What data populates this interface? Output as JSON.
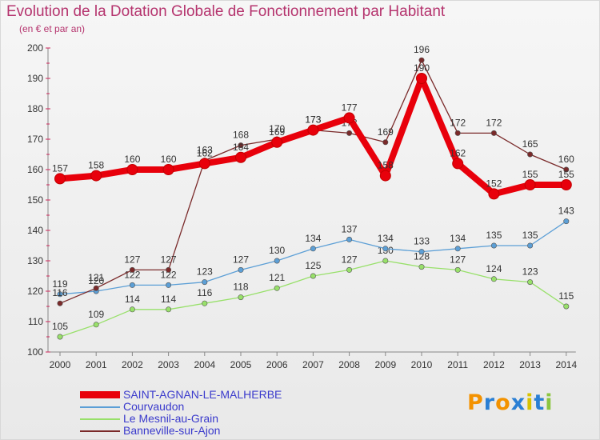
{
  "chart_data": {
    "type": "line",
    "title": "Evolution de la Dotation Globale de Fonctionnement par Habitant",
    "subtitle": "(en € et par an)",
    "x": [
      "2000",
      "2001",
      "2002",
      "2003",
      "2004",
      "2005",
      "2006",
      "2007",
      "2008",
      "2009",
      "2010",
      "2011",
      "2012",
      "2013",
      "2014"
    ],
    "ylim": [
      100,
      200
    ],
    "yticks": [
      100,
      110,
      120,
      130,
      140,
      150,
      160,
      170,
      180,
      190,
      200
    ],
    "grid": false,
    "legend_placement": "bottom-left",
    "series": [
      {
        "name": "SAINT-AGNAN-LE-MALHERBE",
        "color": "#e8000b",
        "values": [
          157,
          158,
          160,
          160,
          162,
          164,
          169,
          173,
          177,
          158,
          190,
          162,
          152,
          155,
          155
        ]
      },
      {
        "name": "Courvaudon",
        "color": "#5c9fd6",
        "values": [
          119,
          120,
          122,
          122,
          123,
          127,
          130,
          134,
          137,
          134,
          133,
          134,
          135,
          135,
          143
        ]
      },
      {
        "name": "Le Mesnil-au-Grain",
        "color": "#98e06a",
        "values": [
          105,
          109,
          114,
          114,
          116,
          118,
          121,
          125,
          127,
          130,
          128,
          127,
          124,
          123,
          115
        ]
      },
      {
        "name": "Banneville-sur-Ajon",
        "color": "#7a2a2a",
        "values": [
          116,
          121,
          127,
          127,
          163,
          168,
          170,
          173,
          172,
          169,
          196,
          172,
          172,
          165,
          160
        ]
      }
    ]
  },
  "brand": {
    "text": "Proxiti"
  }
}
